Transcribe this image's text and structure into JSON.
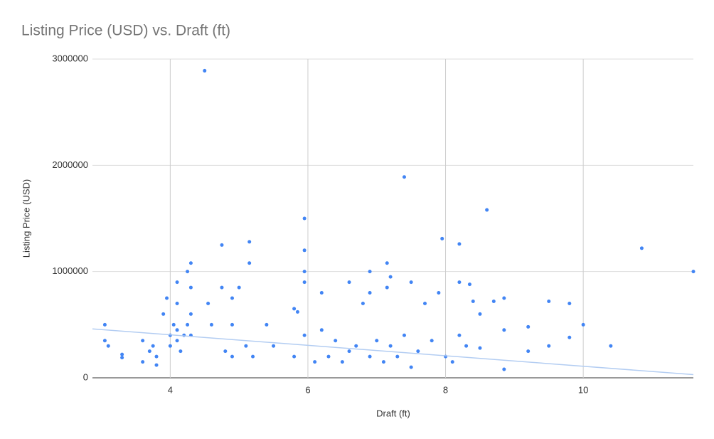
{
  "chart_data": {
    "type": "scatter",
    "title": "Listing Price (USD) vs. Draft (ft)",
    "x_label": "Draft (ft)",
    "y_label": "Listing Price (USD)",
    "xlim": [
      2.87,
      11.6
    ],
    "ylim": [
      0,
      3000000
    ],
    "xticks": [
      4,
      6,
      8,
      10
    ],
    "yticks": [
      0,
      1000000,
      2000000,
      3000000
    ],
    "grid": true,
    "color": "#4285f4",
    "x": [
      3.05,
      3.05,
      3.1,
      3.3,
      3.3,
      3.6,
      3.6,
      3.7,
      3.75,
      3.8,
      3.8,
      3.9,
      3.95,
      4.0,
      4.0,
      4.05,
      4.1,
      4.1,
      4.1,
      4.1,
      4.15,
      4.2,
      4.25,
      4.25,
      4.3,
      4.3,
      4.3,
      4.3,
      4.5,
      4.55,
      4.6,
      4.75,
      4.75,
      4.8,
      4.9,
      4.9,
      4.9,
      5.0,
      5.1,
      5.15,
      5.15,
      5.2,
      5.4,
      5.5,
      5.8,
      5.8,
      5.85,
      5.95,
      5.95,
      5.95,
      5.95,
      5.95,
      6.1,
      6.2,
      6.2,
      6.3,
      6.4,
      6.5,
      6.6,
      6.6,
      6.7,
      6.8,
      6.9,
      6.9,
      6.9,
      7.0,
      7.1,
      7.15,
      7.15,
      7.2,
      7.2,
      7.3,
      7.4,
      7.4,
      7.5,
      7.5,
      7.6,
      7.7,
      7.8,
      7.9,
      7.95,
      8.0,
      8.1,
      8.2,
      8.2,
      8.2,
      8.3,
      8.35,
      8.4,
      8.5,
      8.5,
      8.6,
      8.7,
      8.85,
      8.85,
      8.85,
      9.2,
      9.2,
      9.5,
      9.5,
      9.8,
      9.8,
      10.0,
      10.4,
      10.85,
      11.6
    ],
    "values": [
      500000,
      350000,
      300000,
      220000,
      190000,
      150000,
      350000,
      250000,
      300000,
      200000,
      120000,
      600000,
      750000,
      400000,
      300000,
      500000,
      350000,
      450000,
      700000,
      900000,
      250000,
      400000,
      500000,
      1000000,
      1080000,
      850000,
      600000,
      400000,
      2890000,
      700000,
      500000,
      1250000,
      850000,
      250000,
      750000,
      500000,
      200000,
      850000,
      300000,
      1280000,
      1080000,
      200000,
      500000,
      300000,
      650000,
      200000,
      620000,
      1500000,
      1200000,
      1000000,
      900000,
      400000,
      150000,
      800000,
      450000,
      200000,
      350000,
      150000,
      900000,
      250000,
      300000,
      700000,
      1000000,
      800000,
      200000,
      350000,
      150000,
      850000,
      1080000,
      950000,
      300000,
      200000,
      1890000,
      400000,
      900000,
      100000,
      250000,
      700000,
      350000,
      800000,
      1310000,
      200000,
      150000,
      1260000,
      900000,
      400000,
      300000,
      880000,
      720000,
      600000,
      280000,
      1580000,
      720000,
      750000,
      450000,
      80000,
      480000,
      250000,
      720000,
      300000,
      700000,
      380000,
      500000,
      300000,
      1220000,
      1000000
    ],
    "trendline": {
      "color": "#b3cdf2",
      "x": [
        2.87,
        11.6
      ],
      "values": [
        460000,
        30000
      ]
    }
  }
}
